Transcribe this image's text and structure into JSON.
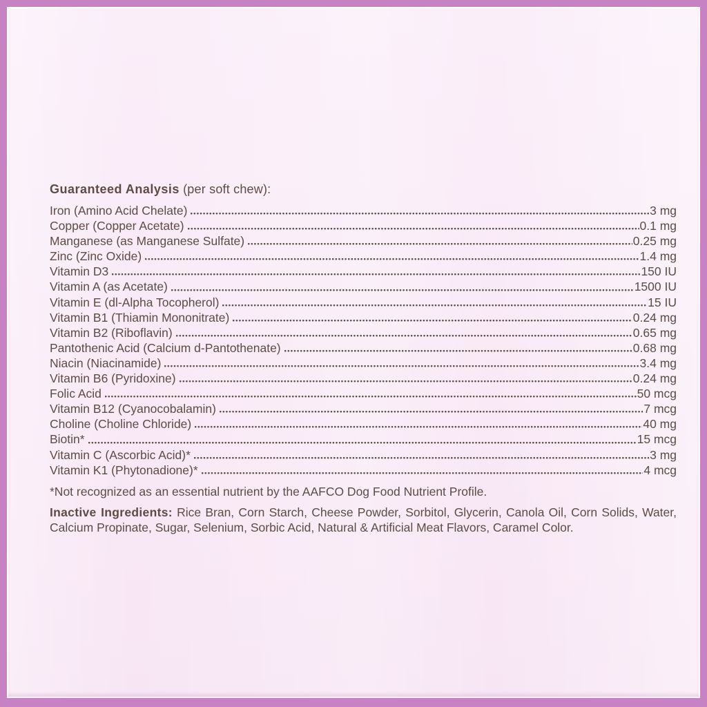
{
  "colors": {
    "frame": "#c782c4",
    "bg1": "#faeef9",
    "bg2": "#f7e5f4",
    "text": "#5d4b45"
  },
  "label": {
    "heading_bold": "Guaranteed Analysis",
    "heading_rest": " (per soft chew):",
    "rows": [
      {
        "name": "Iron (Amino Acid Chelate)",
        "value": "3 mg"
      },
      {
        "name": "Copper (Copper Acetate)",
        "value": "0.1 mg"
      },
      {
        "name": "Manganese (as Manganese Sulfate)",
        "value": "0.25 mg"
      },
      {
        "name": "Zinc (Zinc Oxide)",
        "value": "1.4 mg"
      },
      {
        "name": "Vitamin D3",
        "value": "150 IU"
      },
      {
        "name": "Vitamin A (as Acetate)",
        "value": "1500 IU"
      },
      {
        "name": "Vitamin E (dl-Alpha Tocopherol)",
        "value": "15 IU"
      },
      {
        "name": "Vitamin B1 (Thiamin Mononitrate)",
        "value": "0.24 mg"
      },
      {
        "name": "Vitamin B2 (Riboflavin)",
        "value": "0.65 mg"
      },
      {
        "name": "Pantothenic Acid (Calcium d-Pantothenate)",
        "value": "0.68 mg"
      },
      {
        "name": "Niacin (Niacinamide)",
        "value": "3.4 mg"
      },
      {
        "name": "Vitamin B6 (Pyridoxine)",
        "value": "0.24 mg"
      },
      {
        "name": "Folic Acid",
        "value": "50 mcg"
      },
      {
        "name": "Vitamin B12 (Cyanocobalamin)",
        "value": "7 mcg"
      },
      {
        "name": "Choline (Choline Chloride)",
        "value": "40 mg"
      },
      {
        "name": "Biotin*",
        "value": "15 mcg"
      },
      {
        "name": "Vitamin C (Ascorbic Acid)*",
        "value": "3 mg"
      },
      {
        "name": "Vitamin K1 (Phytonadione)*",
        "value": "4 mcg"
      }
    ],
    "footnote": "*Not recognized as an essential nutrient by the AAFCO Dog Food Nutrient Profile.",
    "inactive_label": "Inactive Ingredients:",
    "inactive_text": " Rice Bran, Corn Starch, Cheese Powder, Sorbitol, Glycerin, Canola Oil, Corn Solids, Water, Calcium Propinate, Sugar, Selenium, Sorbic Acid, Natural & Artificial Meat Flavors, Caramel Color."
  }
}
